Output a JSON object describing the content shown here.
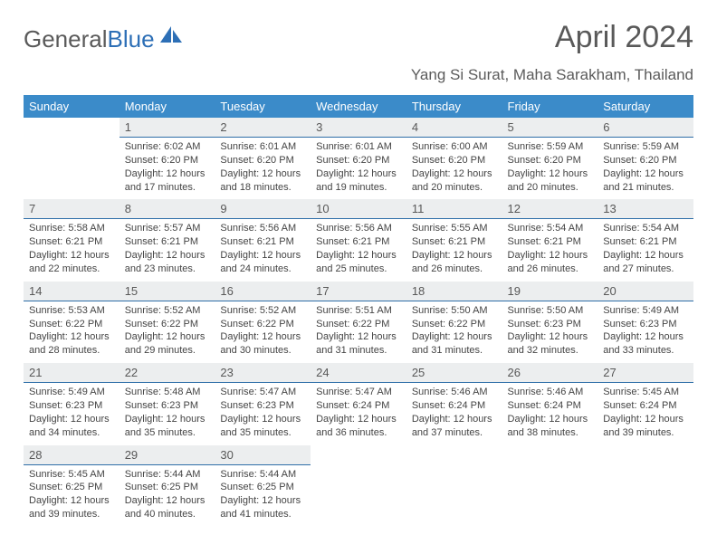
{
  "brand": {
    "part1": "General",
    "part2": "Blue"
  },
  "title": "April 2024",
  "location": "Yang Si Surat, Maha Sarakham, Thailand",
  "colors": {
    "header_bg": "#3b8bc9",
    "header_text": "#ffffff",
    "daynum_bg": "#eceeef",
    "daynum_border": "#2e6ea8",
    "body_text": "#444444",
    "title_text": "#595959",
    "logo_accent": "#2d6fb6"
  },
  "weekdays": [
    "Sunday",
    "Monday",
    "Tuesday",
    "Wednesday",
    "Thursday",
    "Friday",
    "Saturday"
  ],
  "weeks": [
    [
      null,
      {
        "n": "1",
        "sr": "6:02 AM",
        "ss": "6:20 PM",
        "dl": "12 hours and 17 minutes."
      },
      {
        "n": "2",
        "sr": "6:01 AM",
        "ss": "6:20 PM",
        "dl": "12 hours and 18 minutes."
      },
      {
        "n": "3",
        "sr": "6:01 AM",
        "ss": "6:20 PM",
        "dl": "12 hours and 19 minutes."
      },
      {
        "n": "4",
        "sr": "6:00 AM",
        "ss": "6:20 PM",
        "dl": "12 hours and 20 minutes."
      },
      {
        "n": "5",
        "sr": "5:59 AM",
        "ss": "6:20 PM",
        "dl": "12 hours and 20 minutes."
      },
      {
        "n": "6",
        "sr": "5:59 AM",
        "ss": "6:20 PM",
        "dl": "12 hours and 21 minutes."
      }
    ],
    [
      {
        "n": "7",
        "sr": "5:58 AM",
        "ss": "6:21 PM",
        "dl": "12 hours and 22 minutes."
      },
      {
        "n": "8",
        "sr": "5:57 AM",
        "ss": "6:21 PM",
        "dl": "12 hours and 23 minutes."
      },
      {
        "n": "9",
        "sr": "5:56 AM",
        "ss": "6:21 PM",
        "dl": "12 hours and 24 minutes."
      },
      {
        "n": "10",
        "sr": "5:56 AM",
        "ss": "6:21 PM",
        "dl": "12 hours and 25 minutes."
      },
      {
        "n": "11",
        "sr": "5:55 AM",
        "ss": "6:21 PM",
        "dl": "12 hours and 26 minutes."
      },
      {
        "n": "12",
        "sr": "5:54 AM",
        "ss": "6:21 PM",
        "dl": "12 hours and 26 minutes."
      },
      {
        "n": "13",
        "sr": "5:54 AM",
        "ss": "6:21 PM",
        "dl": "12 hours and 27 minutes."
      }
    ],
    [
      {
        "n": "14",
        "sr": "5:53 AM",
        "ss": "6:22 PM",
        "dl": "12 hours and 28 minutes."
      },
      {
        "n": "15",
        "sr": "5:52 AM",
        "ss": "6:22 PM",
        "dl": "12 hours and 29 minutes."
      },
      {
        "n": "16",
        "sr": "5:52 AM",
        "ss": "6:22 PM",
        "dl": "12 hours and 30 minutes."
      },
      {
        "n": "17",
        "sr": "5:51 AM",
        "ss": "6:22 PM",
        "dl": "12 hours and 31 minutes."
      },
      {
        "n": "18",
        "sr": "5:50 AM",
        "ss": "6:22 PM",
        "dl": "12 hours and 31 minutes."
      },
      {
        "n": "19",
        "sr": "5:50 AM",
        "ss": "6:23 PM",
        "dl": "12 hours and 32 minutes."
      },
      {
        "n": "20",
        "sr": "5:49 AM",
        "ss": "6:23 PM",
        "dl": "12 hours and 33 minutes."
      }
    ],
    [
      {
        "n": "21",
        "sr": "5:49 AM",
        "ss": "6:23 PM",
        "dl": "12 hours and 34 minutes."
      },
      {
        "n": "22",
        "sr": "5:48 AM",
        "ss": "6:23 PM",
        "dl": "12 hours and 35 minutes."
      },
      {
        "n": "23",
        "sr": "5:47 AM",
        "ss": "6:23 PM",
        "dl": "12 hours and 35 minutes."
      },
      {
        "n": "24",
        "sr": "5:47 AM",
        "ss": "6:24 PM",
        "dl": "12 hours and 36 minutes."
      },
      {
        "n": "25",
        "sr": "5:46 AM",
        "ss": "6:24 PM",
        "dl": "12 hours and 37 minutes."
      },
      {
        "n": "26",
        "sr": "5:46 AM",
        "ss": "6:24 PM",
        "dl": "12 hours and 38 minutes."
      },
      {
        "n": "27",
        "sr": "5:45 AM",
        "ss": "6:24 PM",
        "dl": "12 hours and 39 minutes."
      }
    ],
    [
      {
        "n": "28",
        "sr": "5:45 AM",
        "ss": "6:25 PM",
        "dl": "12 hours and 39 minutes."
      },
      {
        "n": "29",
        "sr": "5:44 AM",
        "ss": "6:25 PM",
        "dl": "12 hours and 40 minutes."
      },
      {
        "n": "30",
        "sr": "5:44 AM",
        "ss": "6:25 PM",
        "dl": "12 hours and 41 minutes."
      },
      null,
      null,
      null,
      null
    ]
  ],
  "labels": {
    "sunrise": "Sunrise:",
    "sunset": "Sunset:",
    "daylight": "Daylight:"
  }
}
